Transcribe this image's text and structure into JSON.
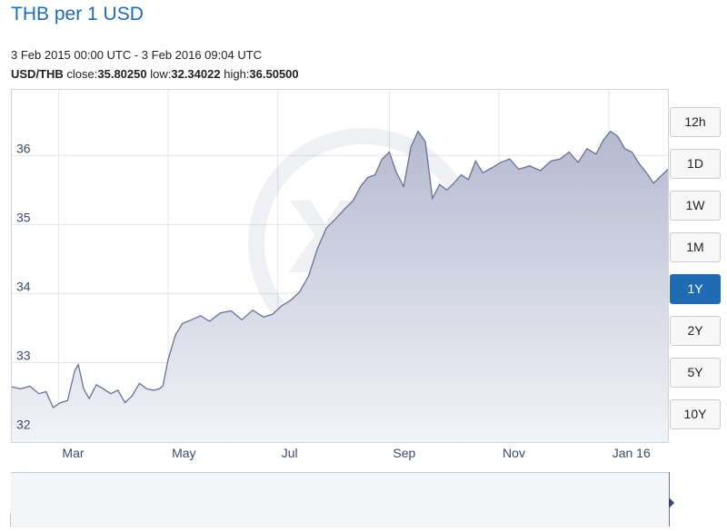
{
  "header": {
    "title": "THB per 1 USD",
    "date_range": "3 Feb 2015 00:00 UTC - 3 Feb 2016 09:04 UTC",
    "pair": "USD/THB",
    "close_label": "close:",
    "close": "35.80250",
    "low_label": "low:",
    "low": "32.34022",
    "high_label": "high:",
    "high": "36.50500"
  },
  "range_buttons": [
    {
      "label": "12h",
      "active": false
    },
    {
      "label": "1D",
      "active": false
    },
    {
      "label": "1W",
      "active": false
    },
    {
      "label": "1M",
      "active": false
    },
    {
      "label": "1Y",
      "active": true
    },
    {
      "label": "2Y",
      "active": false
    },
    {
      "label": "5Y",
      "active": false
    },
    {
      "label": "10Y",
      "active": false
    }
  ],
  "colors": {
    "accent": "#1f6cb5",
    "series_fill_top": "#b4b9cf",
    "series_fill_bottom": "#f2f3f8",
    "series_line": "#6a7193",
    "navigator_fill": "#c7cad8",
    "navigator_selected": "#4c5680"
  },
  "chart_data": {
    "type": "area",
    "title": "THB per 1 USD",
    "x_tick_labels": [
      "Mar",
      "May",
      "Jul",
      "Sep",
      "Nov",
      "Jan 16"
    ],
    "x_tick_dates": [
      "2015-03-01",
      "2015-05-01",
      "2015-07-01",
      "2015-09-01",
      "2015-11-01",
      "2016-01-01"
    ],
    "y_ticks": [
      32,
      33,
      34,
      35,
      36
    ],
    "ylim": [
      31.85,
      36.95
    ],
    "xlim": [
      "2015-02-03",
      "2016-02-03"
    ],
    "grid": true,
    "series": [
      {
        "x": [
          "2015-02-03",
          "2015-02-08",
          "2015-02-13",
          "2015-02-18",
          "2015-02-22",
          "2015-02-26",
          "2015-03-02",
          "2015-03-06",
          "2015-03-10",
          "2015-03-12",
          "2015-03-15",
          "2015-03-18",
          "2015-03-22",
          "2015-03-26",
          "2015-03-30",
          "2015-04-03",
          "2015-04-07",
          "2015-04-11",
          "2015-04-15",
          "2015-04-19",
          "2015-04-23",
          "2015-04-26",
          "2015-04-28",
          "2015-05-01",
          "2015-05-05",
          "2015-05-09",
          "2015-05-14",
          "2015-05-19",
          "2015-05-24",
          "2015-05-30",
          "2015-06-05",
          "2015-06-11",
          "2015-06-17",
          "2015-06-23",
          "2015-06-28",
          "2015-07-03",
          "2015-07-08",
          "2015-07-13",
          "2015-07-18",
          "2015-07-23",
          "2015-07-28",
          "2015-08-02",
          "2015-08-07",
          "2015-08-12",
          "2015-08-16",
          "2015-08-20",
          "2015-08-24",
          "2015-08-28",
          "2015-09-01",
          "2015-09-05",
          "2015-09-09",
          "2015-09-13",
          "2015-09-17",
          "2015-09-21",
          "2015-09-25",
          "2015-09-29",
          "2015-10-03",
          "2015-10-07",
          "2015-10-11",
          "2015-10-15",
          "2015-10-19",
          "2015-10-23",
          "2015-10-28",
          "2015-11-02",
          "2015-11-07",
          "2015-11-12",
          "2015-11-18",
          "2015-11-24",
          "2015-11-30",
          "2015-12-05",
          "2015-12-10",
          "2015-12-15",
          "2015-12-20",
          "2015-12-25",
          "2015-12-29",
          "2016-01-02",
          "2016-01-06",
          "2016-01-10",
          "2016-01-14",
          "2016-01-18",
          "2016-01-22",
          "2016-01-26",
          "2016-01-30",
          "2016-02-03"
        ],
        "y": [
          32.65,
          32.62,
          32.66,
          32.55,
          32.58,
          32.35,
          32.42,
          32.45,
          32.88,
          32.97,
          32.62,
          32.48,
          32.68,
          32.62,
          32.55,
          32.6,
          32.42,
          32.52,
          32.7,
          32.62,
          32.6,
          32.62,
          32.66,
          33.05,
          33.4,
          33.57,
          33.62,
          33.68,
          33.6,
          33.72,
          33.75,
          33.62,
          33.76,
          33.66,
          33.7,
          33.82,
          33.9,
          34.02,
          34.25,
          34.65,
          34.95,
          35.08,
          35.22,
          35.35,
          35.55,
          35.68,
          35.72,
          35.95,
          36.05,
          35.75,
          35.55,
          36.12,
          36.35,
          36.2,
          35.38,
          35.58,
          35.5,
          35.6,
          35.72,
          35.65,
          35.92,
          35.75,
          35.82,
          35.9,
          35.95,
          35.8,
          35.85,
          35.78,
          35.92,
          35.95,
          36.05,
          35.9,
          36.1,
          36.02,
          36.22,
          36.35,
          36.28,
          36.1,
          36.05,
          35.88,
          35.75,
          35.6,
          35.7,
          35.8
        ]
      }
    ]
  }
}
